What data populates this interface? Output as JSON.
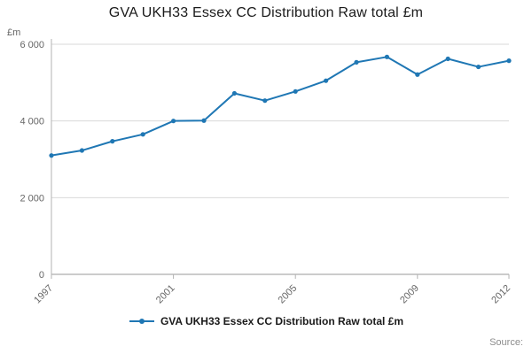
{
  "page": {
    "title": "GVA UKH33 Essex CC Distribution Raw total £m"
  },
  "chart_data": {
    "type": "line",
    "title": "GVA UKH33 Essex CC Distribution Raw total £m",
    "ylabel": "£m",
    "xlabel": "",
    "x": [
      1997,
      1998,
      1999,
      2000,
      2001,
      2002,
      2003,
      2004,
      2005,
      2006,
      2007,
      2008,
      2009,
      2010,
      2011,
      2012
    ],
    "values": [
      3100,
      3230,
      3470,
      3650,
      4000,
      4010,
      4720,
      4530,
      4770,
      5050,
      5530,
      5670,
      5210,
      5620,
      5410,
      5570
    ],
    "ylim": [
      0,
      6000
    ],
    "yticks": [
      0,
      2000,
      4000,
      6000
    ],
    "xticks": [
      1997,
      2001,
      2005,
      2009,
      2012
    ],
    "grid": true,
    "legend": "GVA UKH33 Essex CC Distribution Raw total £m",
    "legend_position": "bottom",
    "line_color": "#1f77b4"
  },
  "footer": {
    "source": "Source:"
  }
}
